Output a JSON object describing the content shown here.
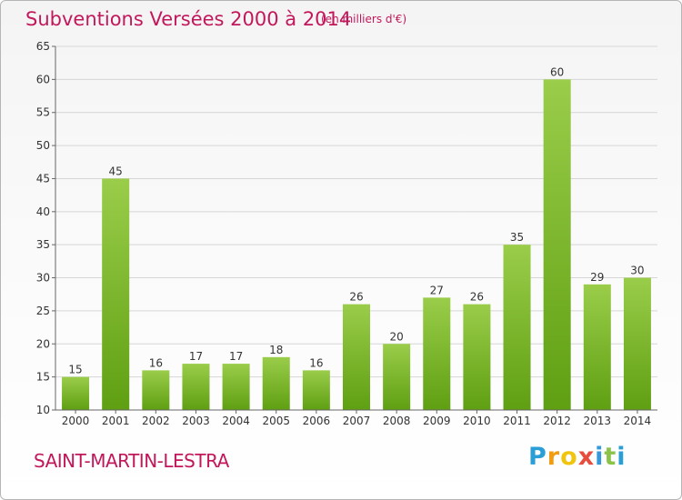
{
  "header": {
    "title": "Subventions Versées 2000 à 2014",
    "unit": "(en milliers d'€)"
  },
  "footer": {
    "commune": "SAINT-MARTIN-LESTRA",
    "logo_text": "Proxiti"
  },
  "colors": {
    "title": "#c2185b",
    "bar_top": "#9acd4a",
    "bar_bottom": "#5f9f12",
    "axis": "#666666",
    "grid": "#d6d6d6"
  },
  "chart_data": {
    "type": "bar",
    "title": "Subventions Versées 2000 à 2014",
    "xlabel": "",
    "ylabel": "",
    "categories": [
      "2000",
      "2001",
      "2002",
      "2003",
      "2004",
      "2005",
      "2006",
      "2007",
      "2008",
      "2009",
      "2010",
      "2011",
      "2012",
      "2013",
      "2014"
    ],
    "values": [
      15,
      45,
      16,
      17,
      17,
      18,
      16,
      26,
      20,
      27,
      26,
      35,
      60,
      29,
      30
    ],
    "ylim": [
      10,
      65
    ],
    "yticks": [
      10,
      15,
      20,
      25,
      30,
      35,
      40,
      45,
      50,
      55,
      60,
      65
    ],
    "grid": true,
    "data_labels": true
  }
}
